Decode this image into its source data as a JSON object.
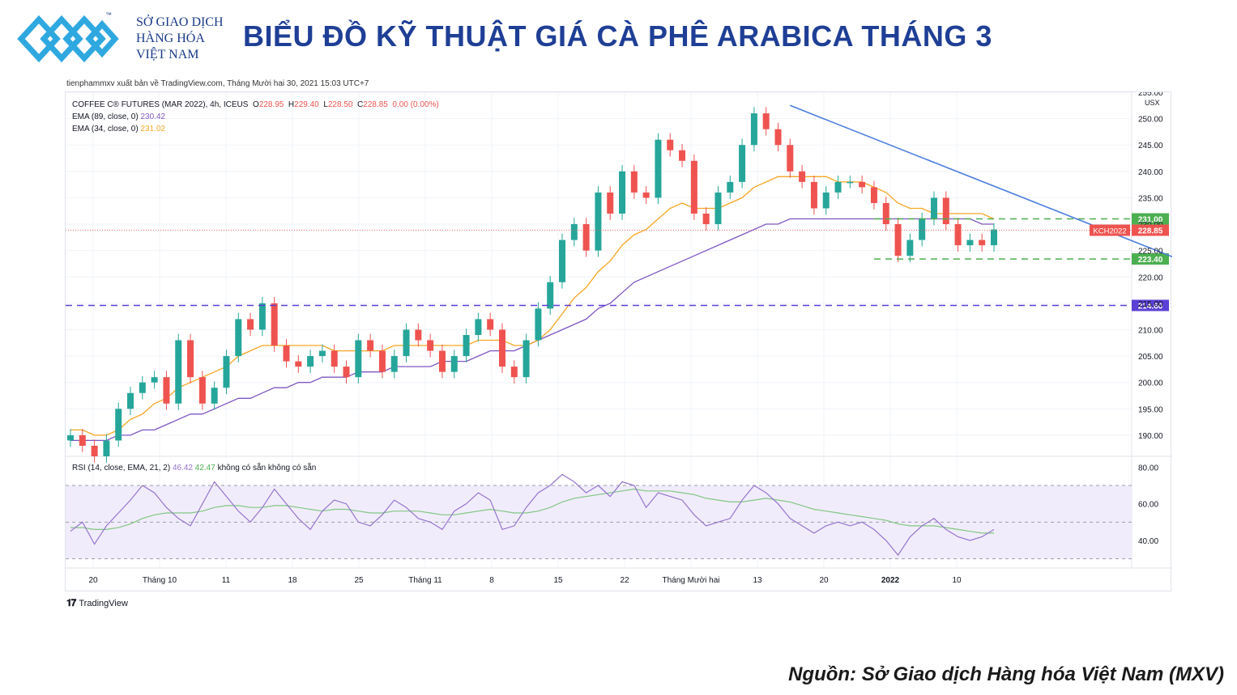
{
  "brand": {
    "line1": "SỞ GIAO DỊCH",
    "line2": "HÀNG HÓA",
    "line3": "VIỆT NAM",
    "tm": "™",
    "color": "#1a3a8a",
    "accent": "#2fa8e0"
  },
  "title": "BIỂU ĐỒ KỸ THUẬT GIÁ CÀ PHÊ ARABICA THÁNG 3",
  "publisher": "tienphammxv xuất bản về TradingView.com, Tháng Mười hai 30, 2021 15:03 UTC+7",
  "source": "Nguồn: Sở Giao dịch Hàng hóa Việt Nam (MXV)",
  "tradingview_label": "TradingView",
  "legend": {
    "symbol": "COFFEE C® FUTURES (MAR 2022), 4h, ICEUS",
    "o_label": "O",
    "o_value": "228.95",
    "h_label": "H",
    "h_value": "229.40",
    "l_label": "L",
    "l_value": "228.50",
    "c_label": "C",
    "c_value": "228.85",
    "change": "0.00 (0.00%)",
    "ema89_label": "EMA (89, close, 0)",
    "ema89_value": "230.42",
    "ema34_label": "EMA (34, close, 0)",
    "ema34_value": "231.02",
    "rsi_label": "RSI (14, close, EMA, 21, 2)",
    "rsi_value": "46.42",
    "rsi_ma_value": "42.47",
    "rsi_na1": "không có sẵn",
    "rsi_na2": "không có sẵn"
  },
  "chart_data": [
    {
      "type": "candlestick",
      "title": "COFFEE C® FUTURES (MAR 2022), 4h, ICEUS",
      "currency": "USX",
      "ylim": [
        186,
        255
      ],
      "y_ticks": [
        "190.00",
        "195.00",
        "200.00",
        "205.00",
        "210.00",
        "215.00",
        "220.00",
        "225.00",
        "230.00",
        "235.00",
        "240.00",
        "245.00",
        "250.00",
        "255.00"
      ],
      "x_tick_labels": [
        "20",
        "Tháng 10",
        "11",
        "18",
        "25",
        "Tháng 11",
        "8",
        "15",
        "22",
        "Tháng Mười hai",
        "13",
        "20",
        "2022",
        "10"
      ],
      "close_path": [
        190,
        188,
        186,
        189,
        195,
        198,
        200,
        201,
        196,
        208,
        201,
        196,
        199,
        205,
        212,
        210,
        215,
        207,
        204,
        203,
        205,
        206,
        203,
        201,
        208,
        206,
        202,
        205,
        210,
        208,
        206,
        202,
        205,
        209,
        212,
        210,
        203,
        201,
        208,
        214,
        219,
        227,
        230,
        225,
        236,
        232,
        240,
        236,
        235,
        246,
        244,
        242,
        232,
        230,
        236,
        238,
        245,
        251,
        248,
        245,
        240,
        238,
        233,
        236,
        238,
        238,
        237,
        234,
        230,
        224,
        227,
        231,
        235,
        230,
        226,
        227,
        226,
        229
      ],
      "ema34_path": [
        191,
        191,
        190,
        190,
        191,
        193,
        194,
        196,
        197,
        199,
        200,
        201,
        202,
        203,
        205,
        206,
        207,
        207,
        207,
        207,
        207,
        207,
        206,
        206,
        206,
        206,
        206,
        207,
        207,
        207,
        207,
        207,
        207,
        207,
        208,
        208,
        208,
        207,
        207,
        208,
        210,
        213,
        216,
        218,
        221,
        223,
        226,
        228,
        229,
        231,
        233,
        234,
        233,
        233,
        233,
        234,
        235,
        237,
        238,
        239,
        239,
        239,
        239,
        239,
        238,
        238,
        238,
        237,
        236,
        234,
        233,
        233,
        232,
        232,
        232,
        232,
        232,
        231
      ],
      "ema89_path": [
        189,
        189,
        189,
        189,
        190,
        190,
        191,
        191,
        192,
        193,
        194,
        194,
        195,
        196,
        197,
        197,
        198,
        199,
        199,
        200,
        200,
        201,
        201,
        201,
        202,
        202,
        202,
        203,
        203,
        203,
        203,
        204,
        204,
        204,
        205,
        206,
        206,
        206,
        207,
        208,
        209,
        210,
        211,
        212,
        214,
        215,
        217,
        219,
        220,
        221,
        222,
        223,
        224,
        225,
        226,
        227,
        228,
        229,
        230,
        230,
        231,
        231,
        231,
        231,
        231,
        231,
        231,
        231,
        231,
        231,
        231,
        231,
        231,
        231,
        231,
        231,
        230,
        230
      ],
      "last_price": {
        "label": "KCH2022",
        "value": "228.85",
        "color": "#ef5350"
      },
      "horizontal_levels": [
        {
          "value": 231.0,
          "label": "231.00",
          "color": "#4caf50",
          "style": "dashed"
        },
        {
          "value": 223.4,
          "label": "223.40",
          "color": "#4caf50",
          "style": "dashed"
        },
        {
          "value": 214.6,
          "label": "214.60",
          "color": "#5b3fd6",
          "style": "dashed"
        }
      ],
      "trendline": {
        "from": {
          "index": 60,
          "value": 252.5
        },
        "to": {
          "index": 95,
          "value": 221.0
        },
        "color": "#4a7dde"
      },
      "colors": {
        "up": "#26a69a",
        "down": "#ef5350",
        "ema34": "#f5a623",
        "ema89": "#7e57c2"
      }
    },
    {
      "type": "line",
      "title": "RSI (14, close, EMA, 21, 2)",
      "ylim": [
        25,
        85
      ],
      "y_ticks": [
        "40.00",
        "60.00",
        "80.00"
      ],
      "band": [
        30,
        70
      ],
      "mid": 50,
      "rsi_path": [
        45,
        50,
        38,
        48,
        55,
        62,
        70,
        66,
        58,
        52,
        48,
        60,
        72,
        64,
        56,
        50,
        58,
        68,
        60,
        52,
        46,
        56,
        62,
        60,
        50,
        48,
        54,
        62,
        58,
        52,
        50,
        46,
        56,
        60,
        66,
        62,
        46,
        48,
        58,
        66,
        70,
        76,
        72,
        66,
        70,
        64,
        72,
        70,
        58,
        66,
        64,
        62,
        54,
        48,
        50,
        52,
        62,
        70,
        66,
        60,
        52,
        48,
        44,
        48,
        50,
        48,
        50,
        46,
        40,
        32,
        42,
        48,
        52,
        46,
        42,
        40,
        42,
        46
      ],
      "rsi_ma_path": [
        47,
        47,
        46,
        46,
        47,
        49,
        52,
        54,
        55,
        55,
        55,
        56,
        58,
        59,
        59,
        58,
        58,
        59,
        59,
        58,
        57,
        56,
        57,
        57,
        56,
        55,
        55,
        56,
        56,
        56,
        55,
        54,
        54,
        55,
        56,
        57,
        56,
        55,
        55,
        56,
        58,
        61,
        63,
        64,
        65,
        66,
        67,
        68,
        67,
        67,
        67,
        66,
        65,
        63,
        62,
        61,
        61,
        62,
        63,
        62,
        61,
        59,
        57,
        56,
        55,
        54,
        53,
        52,
        51,
        49,
        48,
        48,
        48,
        47,
        46,
        45,
        44,
        44
      ],
      "colors": {
        "rsi": "#9575cd",
        "ma": "#81c784",
        "band_fill": "#f1ecfb"
      }
    }
  ]
}
